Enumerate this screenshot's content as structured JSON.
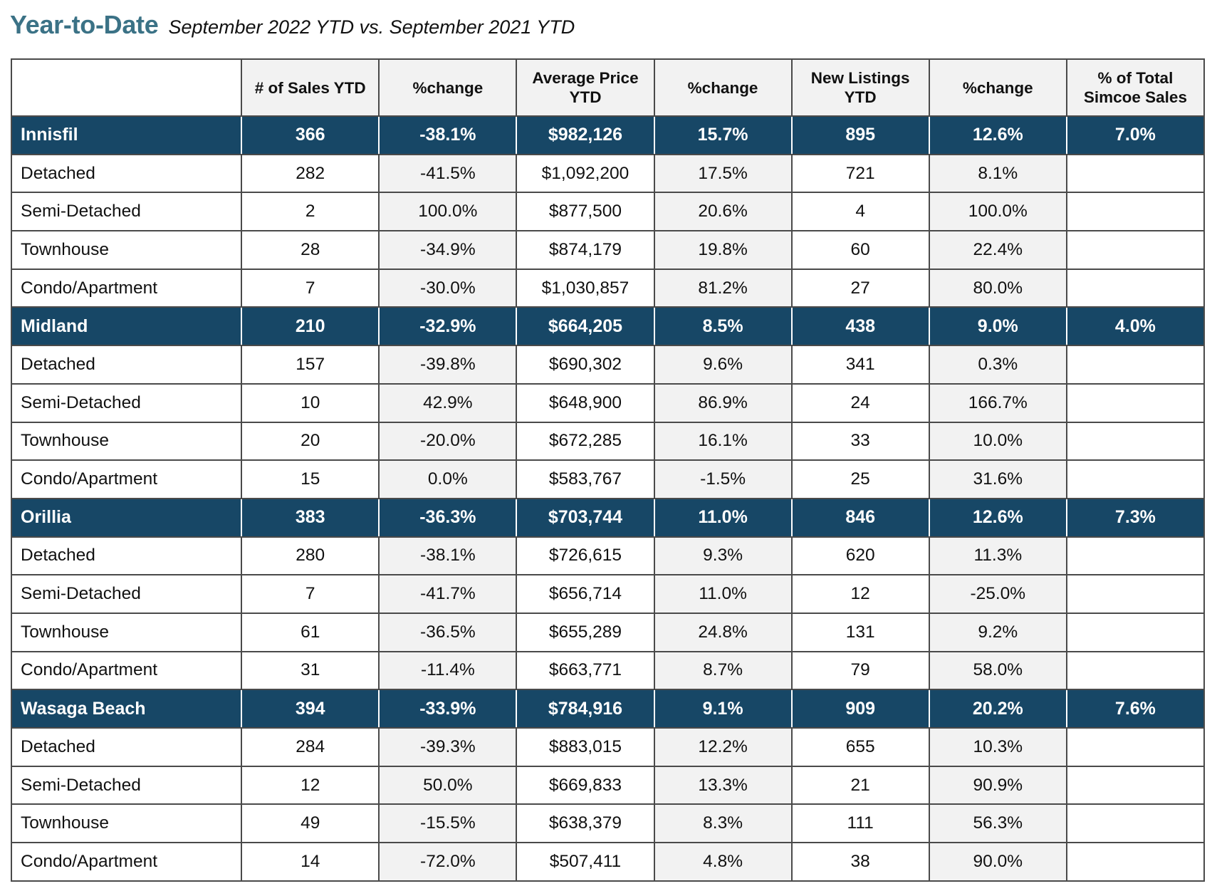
{
  "heading": {
    "title": "Year-to-Date",
    "subtitle": "September 2022 YTD vs. September 2021 YTD"
  },
  "colors": {
    "title": "#3b7286",
    "region_row_bg": "#174766",
    "region_row_text": "#ffffff",
    "shaded_cell_bg": "#f2f2f2"
  },
  "table": {
    "columns": [
      "",
      "# of Sales YTD",
      "%change",
      "Average Price YTD",
      "%change",
      "New Listings YTD",
      "%change",
      "% of Total Simcoe Sales"
    ],
    "groups": [
      {
        "region": [
          "Innisfil",
          "366",
          "-38.1%",
          "$982,126",
          "15.7%",
          "895",
          "12.6%",
          "7.0%"
        ],
        "rows": [
          [
            "Detached",
            "282",
            "-41.5%",
            "$1,092,200",
            "17.5%",
            "721",
            "8.1%",
            ""
          ],
          [
            "Semi-Detached",
            "2",
            "100.0%",
            "$877,500",
            "20.6%",
            "4",
            "100.0%",
            ""
          ],
          [
            "Townhouse",
            "28",
            "-34.9%",
            "$874,179",
            "19.8%",
            "60",
            "22.4%",
            ""
          ],
          [
            "Condo/Apartment",
            "7",
            "-30.0%",
            "$1,030,857",
            "81.2%",
            "27",
            "80.0%",
            ""
          ]
        ]
      },
      {
        "region": [
          "Midland",
          "210",
          "-32.9%",
          "$664,205",
          "8.5%",
          "438",
          "9.0%",
          "4.0%"
        ],
        "rows": [
          [
            "Detached",
            "157",
            "-39.8%",
            "$690,302",
            "9.6%",
            "341",
            "0.3%",
            ""
          ],
          [
            "Semi-Detached",
            "10",
            "42.9%",
            "$648,900",
            "86.9%",
            "24",
            "166.7%",
            ""
          ],
          [
            "Townhouse",
            "20",
            "-20.0%",
            "$672,285",
            "16.1%",
            "33",
            "10.0%",
            ""
          ],
          [
            "Condo/Apartment",
            "15",
            "0.0%",
            "$583,767",
            "-1.5%",
            "25",
            "31.6%",
            ""
          ]
        ]
      },
      {
        "region": [
          "Orillia",
          "383",
          "-36.3%",
          "$703,744",
          "11.0%",
          "846",
          "12.6%",
          "7.3%"
        ],
        "rows": [
          [
            "Detached",
            "280",
            "-38.1%",
            "$726,615",
            "9.3%",
            "620",
            "11.3%",
            ""
          ],
          [
            "Semi-Detached",
            "7",
            "-41.7%",
            "$656,714",
            "11.0%",
            "12",
            "-25.0%",
            ""
          ],
          [
            "Townhouse",
            "61",
            "-36.5%",
            "$655,289",
            "24.8%",
            "131",
            "9.2%",
            ""
          ],
          [
            "Condo/Apartment",
            "31",
            "-11.4%",
            "$663,771",
            "8.7%",
            "79",
            "58.0%",
            ""
          ]
        ]
      },
      {
        "region": [
          "Wasaga Beach",
          "394",
          "-33.9%",
          "$784,916",
          "9.1%",
          "909",
          "20.2%",
          "7.6%"
        ],
        "rows": [
          [
            "Detached",
            "284",
            "-39.3%",
            "$883,015",
            "12.2%",
            "655",
            "10.3%",
            ""
          ],
          [
            "Semi-Detached",
            "12",
            "50.0%",
            "$669,833",
            "13.3%",
            "21",
            "90.9%",
            ""
          ],
          [
            "Townhouse",
            "49",
            "-15.5%",
            "$638,379",
            "8.3%",
            "111",
            "56.3%",
            ""
          ],
          [
            "Condo/Apartment",
            "14",
            "-72.0%",
            "$507,411",
            "4.8%",
            "38",
            "90.0%",
            ""
          ]
        ]
      }
    ]
  }
}
